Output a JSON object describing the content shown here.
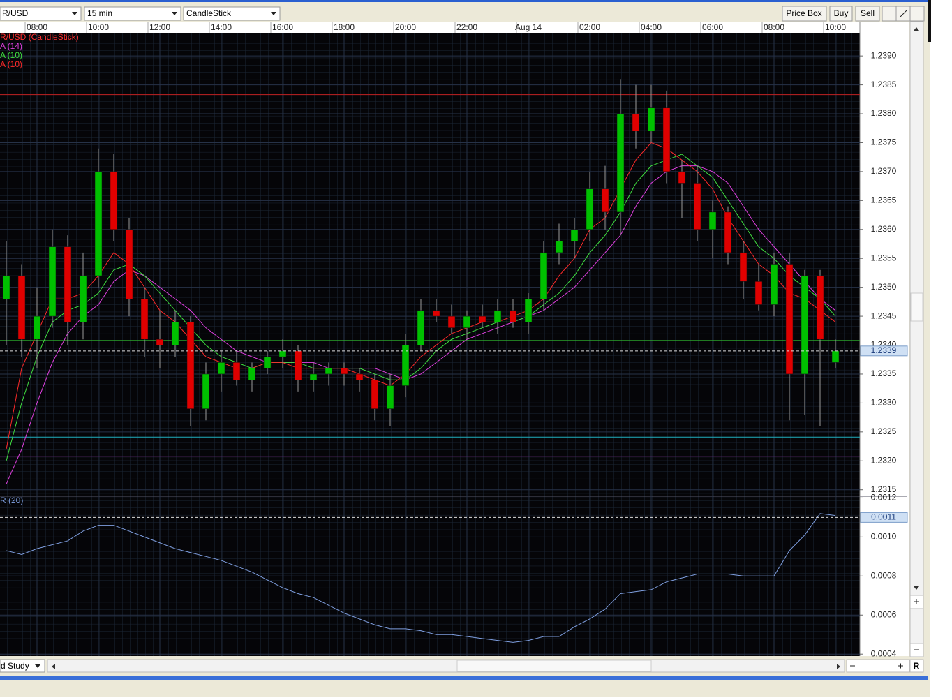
{
  "toolbar": {
    "symbol": "R/USD",
    "interval": "15 min",
    "chart_type": "CandleStick",
    "buttons": [
      "Price Box",
      "Buy",
      "Sell"
    ]
  },
  "footer": {
    "study": "d Study"
  },
  "chart_data": [
    {
      "type": "candlestick",
      "legend": [
        "R/USD (CandleStick)"
      ],
      "legend_color": "#ff3030",
      "up_color": "#00c000",
      "down_color": "#e00000",
      "categories": [
        null,
        null,
        "08:00",
        null,
        null,
        null,
        "10:00",
        null,
        null,
        null,
        "12:00",
        null,
        null,
        null,
        "14:00",
        null,
        null,
        null,
        "16:00",
        null,
        null,
        null,
        "18:00",
        null,
        null,
        null,
        "20:00",
        null,
        null,
        null,
        "22:00",
        null,
        null,
        null,
        "Aug 14",
        null,
        null,
        null,
        "02:00",
        null,
        null,
        null,
        "04:00",
        null,
        null,
        null,
        "06:00",
        null,
        null,
        null,
        "08:00",
        null,
        null,
        null,
        "10:00"
      ],
      "open": [
        1.2348,
        1.2352,
        1.2341,
        1.2345,
        1.2357,
        1.2344,
        1.2352,
        1.237,
        1.236,
        1.2348,
        1.2341,
        1.234,
        1.2344,
        1.2329,
        1.2335,
        1.2337,
        1.2334,
        1.2336,
        1.2338,
        1.2339,
        1.2334,
        1.2335,
        1.2336,
        1.2335,
        1.2334,
        1.2329,
        1.2333,
        1.234,
        1.2346,
        1.2345,
        1.2343,
        1.2345,
        1.2344,
        1.2346,
        1.2344,
        1.2348,
        1.2356,
        1.2358,
        1.236,
        1.2367,
        1.2363,
        1.238,
        1.2377,
        1.2381,
        1.237,
        1.2368,
        1.236,
        1.2363,
        1.2356,
        1.2351,
        1.2347,
        1.2354,
        1.2335,
        1.2352,
        1.2337
      ],
      "high": [
        1.2358,
        1.2354,
        1.235,
        1.236,
        1.2359,
        1.2356,
        1.2374,
        1.2373,
        1.2362,
        1.235,
        1.2346,
        1.2346,
        1.2345,
        1.2337,
        1.2339,
        1.2339,
        1.2337,
        1.2339,
        1.2341,
        1.234,
        1.2337,
        1.2337,
        1.2337,
        1.2336,
        1.2335,
        1.2335,
        1.2342,
        1.2348,
        1.2348,
        1.2347,
        1.2346,
        1.2347,
        1.2348,
        1.2348,
        1.2349,
        1.2358,
        1.2361,
        1.2362,
        1.237,
        1.2371,
        1.2386,
        1.2385,
        1.2385,
        1.2384,
        1.2372,
        1.2371,
        1.2365,
        1.2364,
        1.2358,
        1.2354,
        1.2356,
        1.2356,
        1.2353,
        1.2353,
        1.2341
      ],
      "low": [
        1.234,
        1.2338,
        1.2336,
        1.2343,
        1.234,
        1.2341,
        1.235,
        1.2358,
        1.2345,
        1.2338,
        1.2336,
        1.2338,
        1.2326,
        1.2327,
        1.2332,
        1.2333,
        1.2332,
        1.2335,
        1.2336,
        1.2332,
        1.2332,
        1.2333,
        1.2333,
        1.2332,
        1.2327,
        1.2326,
        1.2331,
        1.2339,
        1.2344,
        1.2342,
        1.2341,
        1.2343,
        1.2342,
        1.2343,
        1.2342,
        1.2346,
        1.2354,
        1.2355,
        1.2358,
        1.236,
        1.2359,
        1.2374,
        1.2375,
        1.2368,
        1.2362,
        1.2358,
        1.2355,
        1.2354,
        1.2348,
        1.2346,
        1.2345,
        1.2327,
        1.2328,
        1.2326,
        1.2336
      ],
      "close": [
        1.2352,
        1.2341,
        1.2345,
        1.2357,
        1.2344,
        1.2352,
        1.237,
        1.236,
        1.2348,
        1.2341,
        1.234,
        1.2344,
        1.2329,
        1.2335,
        1.2337,
        1.2334,
        1.2336,
        1.2338,
        1.2339,
        1.2334,
        1.2335,
        1.2336,
        1.2335,
        1.2334,
        1.2329,
        1.2333,
        1.234,
        1.2346,
        1.2345,
        1.2343,
        1.2345,
        1.2344,
        1.2346,
        1.2344,
        1.2348,
        1.2356,
        1.2358,
        1.236,
        1.2367,
        1.2363,
        1.238,
        1.2377,
        1.2381,
        1.237,
        1.2368,
        1.236,
        1.2363,
        1.2356,
        1.2351,
        1.2347,
        1.2354,
        1.2335,
        1.2352,
        1.2341,
        1.2339
      ],
      "lines": [
        {
          "name": "A (14)",
          "color": "#e040e0",
          "values": [
            1.2316,
            1.2322,
            1.233,
            1.2337,
            1.2342,
            1.2345,
            1.2347,
            1.2351,
            1.2353,
            1.2352,
            1.235,
            1.2348,
            1.2346,
            1.2343,
            1.2341,
            1.2339,
            1.2338,
            1.2337,
            1.2337,
            1.2337,
            1.2337,
            1.2336,
            1.2336,
            1.2336,
            1.2336,
            1.2335,
            1.2334,
            1.2335,
            1.2337,
            1.2339,
            1.2341,
            1.2342,
            1.2343,
            1.2344,
            1.2345,
            1.2346,
            1.2348,
            1.235,
            1.2353,
            1.2356,
            1.2359,
            1.2364,
            1.2368,
            1.237,
            1.2371,
            1.2371,
            1.237,
            1.2368,
            1.2364,
            1.236,
            1.2357,
            1.2354,
            1.2351,
            1.2348,
            1.2346
          ]
        },
        {
          "name": "A (10)",
          "color": "#40e040",
          "values": [
            1.232,
            1.233,
            1.2338,
            1.2344,
            1.2346,
            1.2347,
            1.2349,
            1.2353,
            1.2354,
            1.2352,
            1.2349,
            1.2346,
            1.2343,
            1.234,
            1.2338,
            1.2337,
            1.2336,
            1.2337,
            1.2337,
            1.2337,
            1.2336,
            1.2336,
            1.2336,
            1.2336,
            1.2335,
            1.2334,
            1.2334,
            1.2336,
            1.2339,
            1.2341,
            1.2342,
            1.2343,
            1.2344,
            1.2344,
            1.2345,
            1.2347,
            1.2349,
            1.2352,
            1.2356,
            1.2359,
            1.2363,
            1.2368,
            1.2371,
            1.2372,
            1.2373,
            1.2371,
            1.2369,
            1.2365,
            1.2361,
            1.2357,
            1.2355,
            1.2352,
            1.235,
            1.2348,
            1.2345
          ]
        },
        {
          "name": "A (10)",
          "color": "#ff2a2a",
          "values": [
            1.2322,
            1.2336,
            1.2342,
            1.2348,
            1.2348,
            1.2349,
            1.2352,
            1.2356,
            1.2354,
            1.235,
            1.2346,
            1.2344,
            1.2341,
            1.2338,
            1.2337,
            1.2336,
            1.2336,
            1.2337,
            1.2337,
            1.2336,
            1.2336,
            1.2336,
            1.2336,
            1.2335,
            1.2334,
            1.2333,
            1.2335,
            1.2338,
            1.234,
            1.2342,
            1.2343,
            1.2344,
            1.2344,
            1.2345,
            1.2346,
            1.2348,
            1.2352,
            1.2355,
            1.236,
            1.2362,
            1.2367,
            1.2372,
            1.2375,
            1.2374,
            1.2372,
            1.237,
            1.2367,
            1.2362,
            1.2358,
            1.2354,
            1.2352,
            1.2349,
            1.2348,
            1.2346,
            1.2344
          ]
        }
      ],
      "levels": [
        {
          "value": 1.23833,
          "color": "#c02020"
        },
        {
          "value": 1.23408,
          "color": "#30c030"
        },
        {
          "value": 1.23241,
          "color": "#20b0c0"
        },
        {
          "value": 1.23208,
          "color": "#c020c0"
        }
      ],
      "last_value": 1.2339,
      "ylim": [
        1.2314,
        1.2394
      ],
      "yticks": [
        1.2315,
        {
          "value": 1.232,
          "label": "1.2320"
        },
        1.2325,
        {
          "value": 1.233,
          "label": "1.2330"
        },
        1.2335,
        {
          "value": 1.234,
          "label": "1.2340"
        },
        1.2345,
        {
          "value": 1.235,
          "label": "1.2350"
        },
        1.2355,
        {
          "value": 1.236,
          "label": "1.2360"
        },
        1.2365,
        {
          "value": 1.237,
          "label": "1.2370"
        },
        1.2375,
        {
          "value": 1.238,
          "label": "1.2380"
        },
        1.2385,
        {
          "value": 1.239,
          "label": "1.2390"
        }
      ],
      "grid": true
    },
    {
      "type": "line",
      "legend": [
        "R (20)"
      ],
      "color": "#7f9fe0",
      "values": [
        0.00093,
        0.00091,
        0.00094,
        0.00096,
        0.00098,
        0.00103,
        0.00106,
        0.00106,
        0.00103,
        0.001,
        0.00097,
        0.00094,
        0.00092,
        0.0009,
        0.00088,
        0.00085,
        0.00082,
        0.00078,
        0.00074,
        0.00071,
        0.00069,
        0.00065,
        0.00061,
        0.00058,
        0.00055,
        0.00053,
        0.00053,
        0.00052,
        0.0005,
        0.0005,
        0.00049,
        0.00048,
        0.00047,
        0.00046,
        0.00047,
        0.00049,
        0.00049,
        0.00054,
        0.00058,
        0.00063,
        0.00071,
        0.00072,
        0.00073,
        0.00077,
        0.00079,
        0.00081,
        0.00081,
        0.00081,
        0.0008,
        0.0008,
        0.0008,
        0.00093,
        0.00101,
        0.00112,
        0.00111
      ],
      "last_value": 0.0011,
      "ylim": [
        0.00039,
        0.001205
      ],
      "yticks": [
        0.0004,
        0.0006,
        0.0008,
        {
          "value": 0.001,
          "label": "0.0010"
        },
        0.0012
      ],
      "grid": true
    }
  ]
}
